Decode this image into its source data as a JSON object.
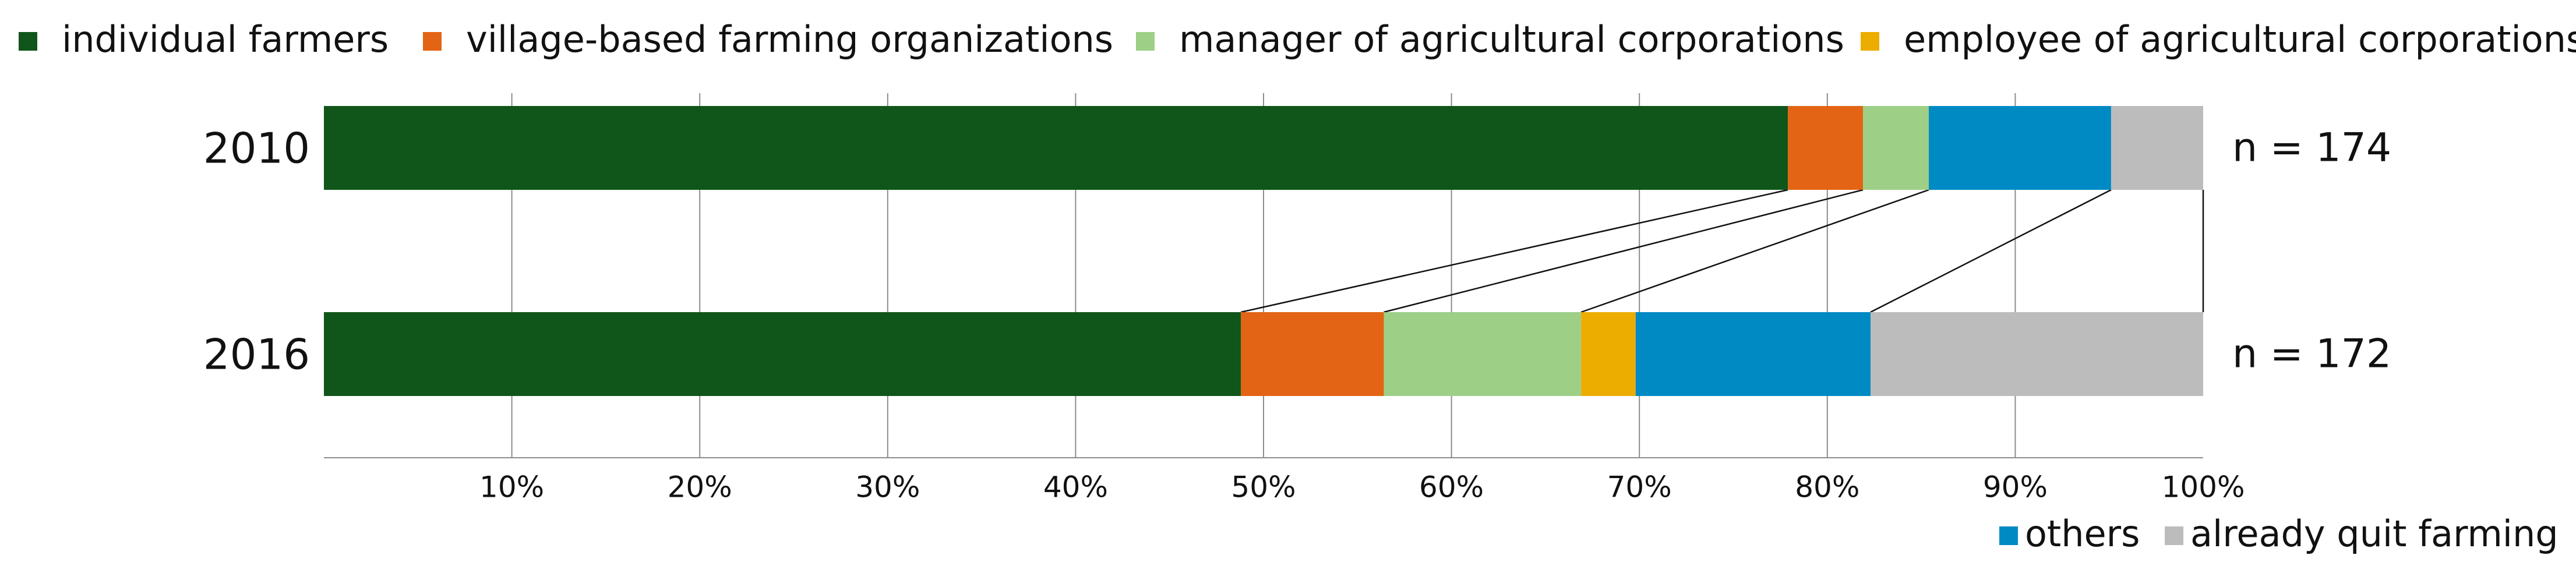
{
  "chart_data": {
    "type": "bar",
    "stacked": true,
    "orientation": "horizontal",
    "title": "",
    "xlabel": "",
    "ylabel": "",
    "categories": [
      "2010",
      "2016"
    ],
    "sample_sizes": [
      "n = 174",
      "n = 172"
    ],
    "xlim": [
      0,
      100
    ],
    "x_ticks": [
      "10%",
      "20%",
      "30%",
      "40%",
      "50%",
      "60%",
      "70%",
      "80%",
      "90%",
      "100%"
    ],
    "grid": "vertical",
    "legend_position": "top and bottom-right",
    "series_connectors": true,
    "series": [
      {
        "name": "individual farmers",
        "color": "#10561a",
        "values": [
          77.9,
          48.8
        ]
      },
      {
        "name": "village-based farming organizations",
        "color": "#e36414",
        "values": [
          4.0,
          7.6
        ]
      },
      {
        "name": "manager of agricultural corporations",
        "color": "#9dcf86",
        "values": [
          3.5,
          10.5
        ]
      },
      {
        "name": "employee of agricultural corporations",
        "color": "#edac00",
        "values": [
          0.0,
          2.9
        ]
      },
      {
        "name": "others",
        "color": "#008ac4",
        "values": [
          9.7,
          12.5
        ]
      },
      {
        "name": "already quit  farming",
        "color": "#bcbcbc",
        "values": [
          4.9,
          17.7
        ]
      }
    ]
  }
}
